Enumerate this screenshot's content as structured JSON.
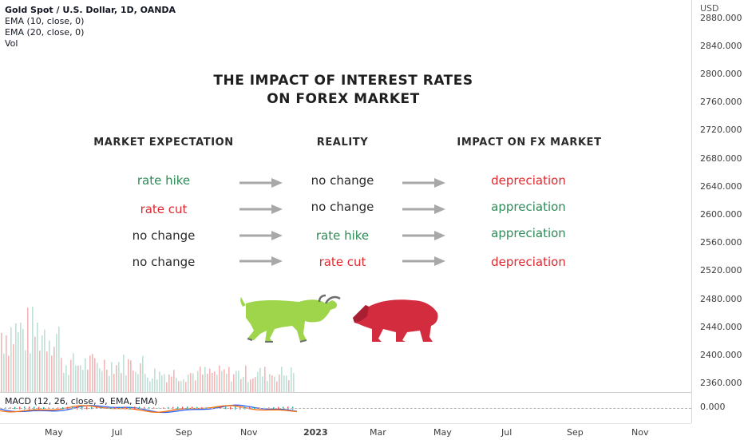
{
  "colors": {
    "green": "#2e8b57",
    "red": "#e0282e",
    "black": "#2a2a2a",
    "bull": "#9ed54b",
    "bear": "#d42c3f",
    "arrow": "#a8a8a8"
  },
  "header": {
    "symbol": "Gold Spot / U.S. Dollar, 1D, OANDA",
    "ema10": "EMA (10, close, 0)",
    "ema20": "EMA (20, close, 0)",
    "vol": "Vol"
  },
  "price_axis": {
    "currency": "USD",
    "labels": [
      "2880.000",
      "2840.000",
      "2800.000",
      "2760.000",
      "2720.000",
      "2680.000",
      "2640.000",
      "2600.000",
      "2560.000",
      "2520.000",
      "2480.000",
      "2440.000",
      "2400.000",
      "2360.000"
    ],
    "macd_zero": "0.000"
  },
  "time_axis": {
    "labels": [
      "May",
      "Jul",
      "Sep",
      "Nov",
      "2023",
      "Mar",
      "May",
      "Jul",
      "Sep",
      "Nov"
    ]
  },
  "macd": {
    "label": "MACD (12, 26, close, 9, EMA, EMA)"
  },
  "infographic": {
    "title_line1": "THE IMPACT OF INTEREST RATES",
    "title_line2": "ON FOREX MARKET",
    "columns": [
      "MARKET EXPECTATION",
      "REALITY",
      "IMPACT ON FX MARKET"
    ],
    "rows": [
      {
        "expectation": "rate hike",
        "exp_color": "green",
        "reality": "no change",
        "real_color": "black",
        "impact": "depreciation",
        "imp_color": "red"
      },
      {
        "expectation": "rate cut",
        "exp_color": "red",
        "reality": "no change",
        "real_color": "black",
        "impact": "appreciation",
        "imp_color": "green"
      },
      {
        "expectation": "no change",
        "exp_color": "black",
        "reality": "rate hike",
        "real_color": "green",
        "impact": "appreciation",
        "imp_color": "green"
      },
      {
        "expectation": "no change",
        "exp_color": "black",
        "reality": "rate cut",
        "real_color": "red",
        "impact": "depreciation",
        "imp_color": "red"
      }
    ]
  }
}
